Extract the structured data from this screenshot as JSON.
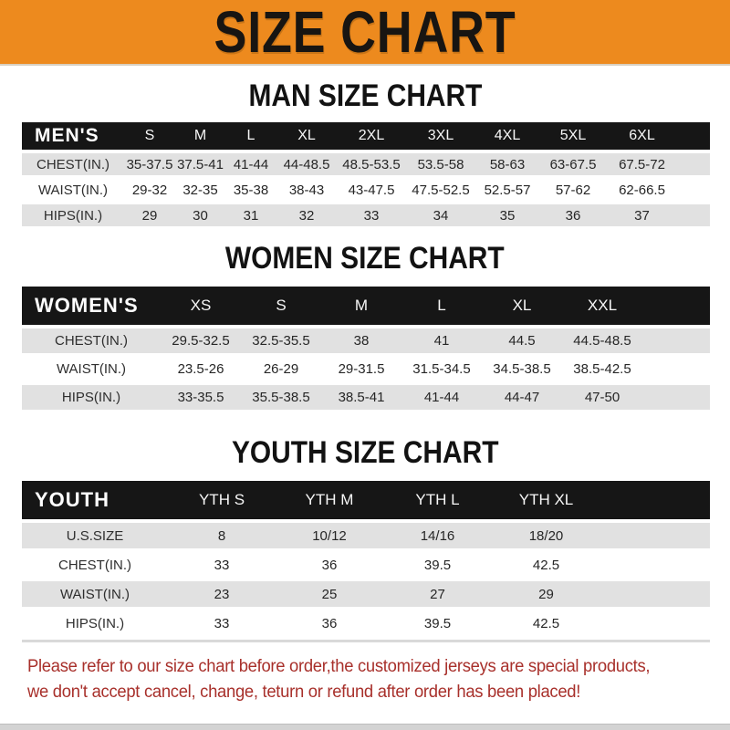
{
  "banner": {
    "title": "SIZE CHART"
  },
  "sections": [
    {
      "heading": "MAN SIZE CHART",
      "table": {
        "corner": "MEN'S",
        "sizes": [
          "S",
          "M",
          "L",
          "XL",
          "2XL",
          "3XL",
          "4XL",
          "5XL",
          "6XL"
        ],
        "rows": [
          {
            "label": "CHEST(IN.)",
            "values": [
              "35-37.5",
              "37.5-41",
              "41-44",
              "44-48.5",
              "48.5-53.5",
              "53.5-58",
              "58-63",
              "63-67.5",
              "67.5-72"
            ]
          },
          {
            "label": "WAIST(IN.)",
            "values": [
              "29-32",
              "32-35",
              "35-38",
              "38-43",
              "43-47.5",
              "47.5-52.5",
              "52.5-57",
              "57-62",
              "62-66.5"
            ]
          },
          {
            "label": "HIPS(IN.)",
            "values": [
              "29",
              "30",
              "31",
              "32",
              "33",
              "34",
              "35",
              "36",
              "37"
            ]
          }
        ]
      }
    },
    {
      "heading": "WOMEN SIZE CHART",
      "table": {
        "corner": "WOMEN'S",
        "sizes": [
          "XS",
          "S",
          "M",
          "L",
          "XL",
          "XXL"
        ],
        "rows": [
          {
            "label": "CHEST(IN.)",
            "values": [
              "29.5-32.5",
              "32.5-35.5",
              "38",
              "41",
              "44.5",
              "44.5-48.5"
            ]
          },
          {
            "label": "WAIST(IN.)",
            "values": [
              "23.5-26",
              "26-29",
              "29-31.5",
              "31.5-34.5",
              "34.5-38.5",
              "38.5-42.5"
            ]
          },
          {
            "label": "HIPS(IN.)",
            "values": [
              "33-35.5",
              "35.5-38.5",
              "38.5-41",
              "41-44",
              "44-47",
              "47-50"
            ]
          }
        ]
      }
    },
    {
      "heading": "YOUTH SIZE CHART",
      "table": {
        "corner": "YOUTH",
        "sizes": [
          "YTH S",
          "YTH M",
          "YTH L",
          "YTH XL"
        ],
        "rows": [
          {
            "label": "U.S.SIZE",
            "values": [
              "8",
              "10/12",
              "14/16",
              "18/20"
            ]
          },
          {
            "label": "CHEST(IN.)",
            "values": [
              "33",
              "36",
              "39.5",
              "42.5"
            ]
          },
          {
            "label": "WAIST(IN.)",
            "values": [
              "23",
              "25",
              "27",
              "29"
            ]
          },
          {
            "label": "HIPS(IN.)",
            "values": [
              "33",
              "36",
              "39.5",
              "42.5"
            ]
          }
        ]
      }
    }
  ],
  "footer": {
    "line1": "Please refer to our size chart before order,the customized jerseys are special products,",
    "line2": "we don't accept cancel, change, teturn or refund after order has been placed!"
  },
  "colors": {
    "banner_bg": "#ED8A1E",
    "header_bar_bg": "#161616",
    "header_bar_text": "#FFFFFF",
    "row_shade": "#E1E1E1",
    "footer_red": "#A8302B",
    "bottom_strip": "#D3D3D3"
  }
}
